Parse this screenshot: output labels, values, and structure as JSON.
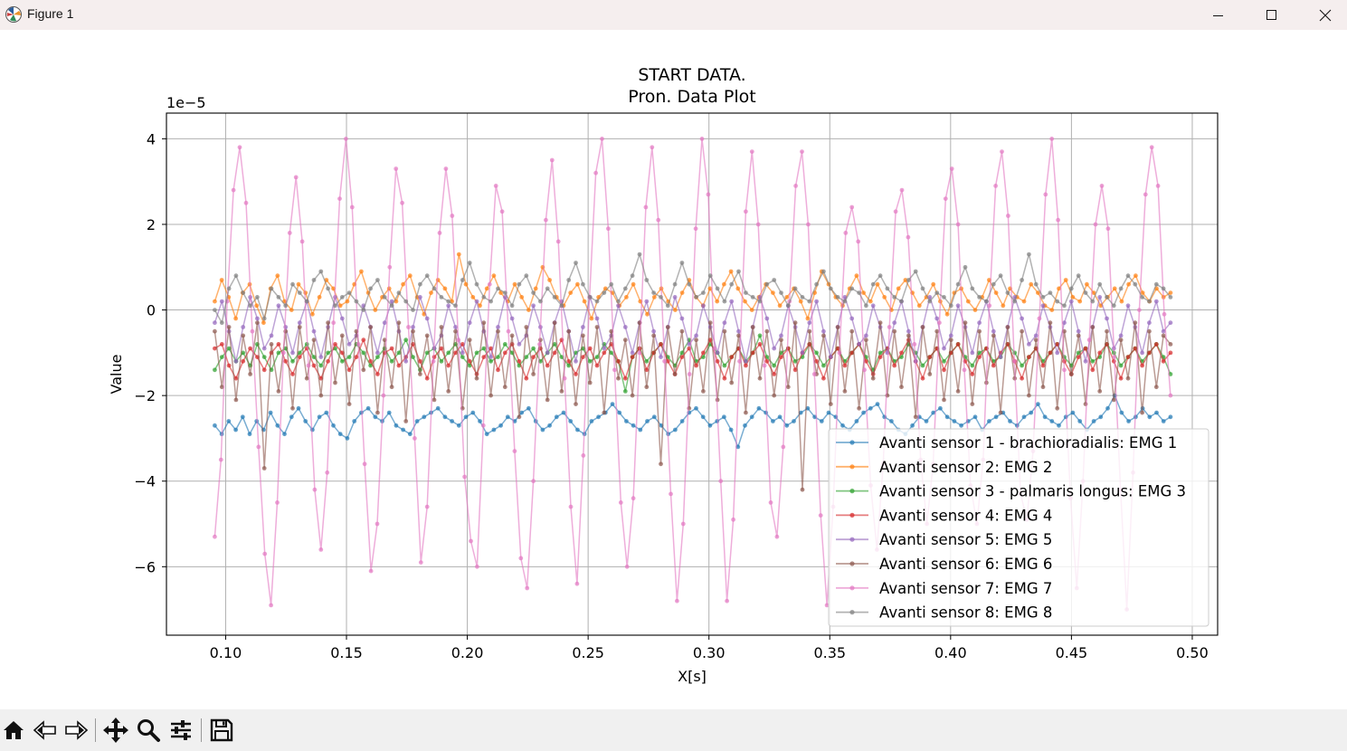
{
  "window": {
    "title": "Figure 1",
    "icons": [
      "matplotlib-logo-icon",
      "minimize-icon",
      "maximize-icon",
      "close-icon"
    ]
  },
  "toolbar": {
    "tools": [
      "home-icon",
      "back-arrow-icon",
      "forward-arrow-icon",
      "pan-icon",
      "zoom-icon",
      "configure-subplots-icon",
      "save-icon"
    ]
  },
  "chart_data": {
    "type": "line",
    "title": "START DATA.\nPron. Data Plot",
    "title_lines": [
      "START DATA.",
      "Pron. Data Plot"
    ],
    "xlabel": "X[s]",
    "ylabel": "Value",
    "y_offset_text": "1e−5",
    "xlim": [
      0.0755,
      0.5105
    ],
    "ylim": [
      -7.6,
      4.6
    ],
    "x_ticks": [
      0.1,
      0.15,
      0.2,
      0.25,
      0.3,
      0.35,
      0.4,
      0.45,
      0.5
    ],
    "x_tick_labels": [
      "0.10",
      "0.15",
      "0.20",
      "0.25",
      "0.30",
      "0.35",
      "0.40",
      "0.45",
      "0.50"
    ],
    "y_ticks": [
      4,
      2,
      0,
      -2,
      -4,
      -6
    ],
    "y_tick_labels": [
      "4",
      "2",
      "0",
      "−2",
      "−4",
      "−6"
    ],
    "grid": true,
    "legend_position": "lower-right",
    "x_start": 0.0955,
    "x_end": 0.491,
    "series": [
      {
        "name": "Avanti sensor 1 - brachioradialis: EMG 1",
        "color": "#1f77b4",
        "values": [
          -2.7,
          -2.9,
          -2.6,
          -2.8,
          -2.5,
          -2.9,
          -2.6,
          -2.8,
          -2.4,
          -2.7,
          -2.9,
          -2.5,
          -2.3,
          -2.6,
          -2.8,
          -2.5,
          -2.4,
          -2.7,
          -2.9,
          -3.0,
          -2.6,
          -2.4,
          -2.3,
          -2.5,
          -2.6,
          -2.4,
          -2.7,
          -2.8,
          -2.9,
          -2.6,
          -2.5,
          -2.4,
          -2.3,
          -2.5,
          -2.6,
          -2.7,
          -2.5,
          -2.4,
          -2.6,
          -2.9,
          -2.8,
          -2.7,
          -2.5,
          -2.6,
          -2.4,
          -2.3,
          -2.6,
          -2.8,
          -2.7,
          -2.5,
          -2.4,
          -2.6,
          -2.8,
          -2.9,
          -2.6,
          -2.5,
          -2.4,
          -2.2,
          -2.4,
          -2.6,
          -2.7,
          -2.8,
          -2.6,
          -2.5,
          -2.7,
          -2.9,
          -2.8,
          -2.6,
          -2.4,
          -2.3,
          -2.5,
          -2.7,
          -2.6,
          -2.5,
          -2.8,
          -3.2,
          -2.7,
          -2.5,
          -2.3,
          -2.4,
          -2.6,
          -2.5,
          -2.7,
          -2.6,
          -2.4,
          -2.3,
          -2.5,
          -2.6,
          -2.4,
          -2.5,
          -2.7,
          -2.8,
          -2.6,
          -2.4,
          -2.3,
          -2.2,
          -2.5,
          -2.6,
          -2.8,
          -2.9,
          -2.7,
          -2.5,
          -2.6,
          -2.4,
          -2.3,
          -2.5,
          -2.6,
          -2.7,
          -2.6,
          -2.5,
          -2.8,
          -2.6,
          -2.5,
          -2.4,
          -2.6,
          -2.7,
          -2.5,
          -2.4,
          -2.2,
          -2.5,
          -2.6,
          -2.7,
          -2.5,
          -2.4,
          -2.6,
          -2.8,
          -2.6,
          -2.5,
          -2.3,
          -2.0,
          -2.4,
          -2.6,
          -2.5,
          -2.3,
          -2.5,
          -2.4,
          -2.6,
          -2.5
        ]
      },
      {
        "name": "Avanti sensor 2: EMG 2",
        "color": "#ff7f0e",
        "values": [
          0.2,
          0.7,
          0.3,
          -0.2,
          0.4,
          0.6,
          0.1,
          -0.3,
          0.5,
          0.8,
          0.2,
          0.0,
          0.6,
          0.4,
          -0.1,
          0.3,
          0.7,
          0.5,
          0.1,
          0.2,
          0.6,
          0.9,
          0.4,
          0.0,
          0.3,
          0.5,
          0.2,
          0.6,
          0.8,
          0.3,
          -0.1,
          0.4,
          0.7,
          0.5,
          0.2,
          1.3,
          0.6,
          0.3,
          0.1,
          0.5,
          0.8,
          0.4,
          0.2,
          0.6,
          0.3,
          0.0,
          0.5,
          1.0,
          0.7,
          0.3,
          0.1,
          0.4,
          0.6,
          0.2,
          -0.2,
          0.3,
          0.5,
          0.4,
          0.1,
          0.3,
          0.6,
          0.2,
          -0.1,
          0.3,
          0.5,
          0.2,
          0.0,
          0.4,
          0.7,
          0.3,
          0.1,
          0.5,
          0.2,
          0.6,
          0.9,
          0.5,
          0.2,
          0.0,
          0.3,
          0.6,
          0.4,
          0.1,
          0.3,
          0.5,
          0.2,
          -0.2,
          0.4,
          0.9,
          0.6,
          0.3,
          0.1,
          0.5,
          0.8,
          0.4,
          0.2,
          0.6,
          0.3,
          0.0,
          0.5,
          0.7,
          0.4,
          0.1,
          0.3,
          0.6,
          0.2,
          -0.1,
          0.4,
          0.5,
          0.2,
          0.0,
          0.3,
          0.7,
          0.4,
          0.1,
          0.5,
          0.3,
          0.2,
          0.6,
          0.4,
          0.1,
          0.0,
          0.5,
          0.7,
          0.3,
          0.2,
          0.6,
          0.4,
          0.1,
          0.3,
          0.5,
          0.2,
          0.6,
          0.8,
          0.4,
          0.2,
          0.5,
          0.3,
          0.4
        ]
      },
      {
        "name": "Avanti sensor 3 - palmaris longus: EMG 3",
        "color": "#2ca02c",
        "values": [
          -1.4,
          -1.1,
          -0.9,
          -1.2,
          -1.0,
          -1.3,
          -0.8,
          -1.1,
          -1.4,
          -1.0,
          -0.9,
          -1.2,
          -1.0,
          -0.8,
          -1.1,
          -1.3,
          -1.0,
          -0.9,
          -1.2,
          -1.1,
          -0.8,
          -1.0,
          -1.3,
          -1.1,
          -0.9,
          -1.2,
          -1.0,
          -0.7,
          -1.1,
          -1.4,
          -1.0,
          -0.9,
          -1.2,
          -1.0,
          -0.8,
          -1.1,
          -1.3,
          -1.0,
          -0.9,
          -1.2,
          -1.1,
          -0.8,
          -1.0,
          -1.3,
          -1.1,
          -0.9,
          -1.2,
          -1.0,
          -0.8,
          -1.1,
          -1.3,
          -1.0,
          -0.9,
          -1.2,
          -1.1,
          -0.8,
          -1.0,
          -1.2,
          -1.9,
          -1.1,
          -0.9,
          -1.2,
          -1.0,
          -0.8,
          -1.1,
          -1.3,
          -1.0,
          -0.7,
          -1.2,
          -1.1,
          -0.8,
          -1.0,
          -1.3,
          -1.1,
          -0.9,
          -1.2,
          -1.0,
          -0.6,
          -1.1,
          -1.3,
          -1.0,
          -0.9,
          -1.2,
          -1.1,
          -0.8,
          -1.0,
          -1.3,
          -1.1,
          -0.9,
          -1.2,
          -1.0,
          -0.8,
          -1.1,
          -1.4,
          -1.0,
          -0.9,
          -1.2,
          -1.1,
          -0.8,
          -1.0,
          -1.3,
          -1.1,
          -0.9,
          -1.2,
          -1.0,
          -0.8,
          -1.1,
          -1.3,
          -1.0,
          -0.9,
          -1.2,
          -1.1,
          -0.8,
          -1.0,
          -1.3,
          -1.1,
          -0.9,
          -1.2,
          -1.0,
          -0.8,
          -1.1,
          -1.3,
          -1.0,
          -0.9,
          -1.2,
          -1.1,
          -0.8,
          -1.0,
          -1.3,
          -1.1,
          -0.9,
          -1.2,
          -1.0,
          -0.8,
          -1.1,
          -1.5
        ]
      },
      {
        "name": "Avanti sensor 4: EMG 4",
        "color": "#d62728",
        "values": [
          -0.9,
          -0.8,
          -1.3,
          -1.6,
          -1.2,
          -0.9,
          -1.1,
          -1.4,
          -1.0,
          -0.8,
          -1.2,
          -1.5,
          -1.1,
          -0.9,
          -1.3,
          -1.6,
          -1.2,
          -0.8,
          -1.0,
          -1.4,
          -1.1,
          -0.7,
          -1.2,
          -1.5,
          -1.0,
          -0.9,
          -1.3,
          -1.1,
          -0.8,
          -1.2,
          -1.6,
          -1.1,
          -0.9,
          -1.3,
          -1.0,
          -0.8,
          -1.2,
          -1.5,
          -1.1,
          -0.9,
          -1.4,
          -1.0,
          -0.8,
          -1.2,
          -1.6,
          -1.1,
          -0.9,
          -1.3,
          -1.0,
          -0.7,
          -1.2,
          -1.5,
          -1.1,
          -0.9,
          -1.3,
          -1.0,
          -0.8,
          -1.2,
          -1.6,
          -1.1,
          -0.9,
          -1.4,
          -1.0,
          -0.8,
          -1.2,
          -1.5,
          -1.1,
          -0.9,
          -1.3,
          -1.0,
          -0.7,
          -1.2,
          -1.6,
          -1.1,
          -0.9,
          -1.3,
          -1.0,
          -0.8,
          -1.2,
          -1.5,
          -1.1,
          -0.9,
          -1.4,
          -1.0,
          -0.8,
          -1.2,
          -1.6,
          -1.1,
          -0.9,
          -1.3,
          -1.0,
          -0.8,
          -1.2,
          -1.5,
          -1.1,
          -0.9,
          -1.3,
          -1.0,
          -0.7,
          -1.2,
          -1.6,
          -1.1,
          -0.9,
          -1.4,
          -1.0,
          -0.8,
          -1.2,
          -1.5,
          -1.1,
          -0.9,
          -1.3,
          -1.0,
          -0.8,
          -1.2,
          -1.6,
          -1.1,
          -0.9,
          -1.3,
          -1.0,
          -0.8,
          -1.2,
          -1.5,
          -1.1,
          -0.9,
          -1.4,
          -1.0,
          -0.8,
          -1.2,
          -1.6,
          -1.1,
          -0.9,
          -1.3,
          -1.0,
          -0.8,
          -1.2,
          -1.0
        ]
      },
      {
        "name": "Avanti sensor 5: EMG 5",
        "color": "#9467bd",
        "values": [
          -0.3,
          0.2,
          -0.5,
          -1.2,
          -0.4,
          0.3,
          -0.2,
          -0.9,
          -0.6,
          0.1,
          -0.4,
          -1.0,
          -0.3,
          0.2,
          -0.5,
          -1.1,
          -0.4,
          0.3,
          -0.2,
          -0.8,
          -0.6,
          0.1,
          -0.4,
          -1.0,
          -0.3,
          0.2,
          -0.5,
          -1.2,
          -0.4,
          0.3,
          -0.2,
          -0.9,
          -0.6,
          0.1,
          -0.4,
          -1.0,
          -0.3,
          0.2,
          -0.5,
          -1.1,
          -0.4,
          0.3,
          -0.2,
          -0.8,
          -0.6,
          0.1,
          -0.4,
          -1.0,
          -0.3,
          0.2,
          -0.5,
          -1.2,
          -0.4,
          0.3,
          -0.2,
          -0.9,
          -0.6,
          0.1,
          -0.4,
          -1.0,
          -0.3,
          0.2,
          -0.5,
          -1.1,
          -0.4,
          0.3,
          -0.2,
          -0.8,
          -0.6,
          0.1,
          -0.4,
          -1.0,
          -0.3,
          0.2,
          -0.5,
          -1.2,
          -0.4,
          0.3,
          -0.2,
          -0.9,
          -0.6,
          0.1,
          -0.4,
          -1.0,
          -0.3,
          0.2,
          -0.5,
          -1.1,
          -0.4,
          0.3,
          -0.2,
          -0.8,
          -0.6,
          0.1,
          -0.4,
          -1.0,
          -0.3,
          0.2,
          -0.5,
          -1.2,
          -0.4,
          0.3,
          -0.2,
          -0.9,
          -0.6,
          0.1,
          -0.4,
          -1.0,
          -0.3,
          0.2,
          -0.5,
          -1.1,
          -0.4,
          0.3,
          -0.2,
          -0.8,
          -0.6,
          0.1,
          -0.4,
          -1.0,
          -0.3,
          0.2,
          -0.5,
          -1.2,
          -0.4,
          0.3,
          -0.2,
          -0.9,
          -0.6,
          0.1,
          -0.4,
          -1.0,
          -0.3,
          0.2,
          -0.5,
          -0.3
        ]
      },
      {
        "name": "Avanti sensor 6: EMG 6",
        "color": "#8c564b",
        "values": [
          -0.5,
          -1.8,
          -0.4,
          -2.1,
          -0.6,
          -1.5,
          -0.3,
          -3.7,
          -0.8,
          -1.9,
          -0.5,
          -2.3,
          -0.4,
          -1.6,
          -0.7,
          -2.0,
          -0.3,
          -1.7,
          -0.6,
          -2.2,
          -0.5,
          -1.4,
          -0.4,
          -2.4,
          -0.7,
          -1.8,
          -0.3,
          -2.6,
          -0.5,
          -1.5,
          -0.6,
          -2.1,
          -0.4,
          -1.9,
          -0.5,
          -2.3,
          -0.7,
          -1.6,
          -0.3,
          -2.0,
          -0.5,
          -1.8,
          -0.6,
          -2.5,
          -0.4,
          -1.5,
          -0.7,
          -2.1,
          -0.3,
          -1.9,
          -0.5,
          -2.2,
          -0.6,
          -1.7,
          -0.4,
          -2.4,
          -0.5,
          -1.6,
          -0.7,
          -2.0,
          -0.3,
          -1.8,
          -0.6,
          -3.6,
          -0.4,
          -1.5,
          -0.5,
          -2.3,
          -0.7,
          -1.9,
          -0.3,
          -2.1,
          -0.5,
          -1.7,
          -0.6,
          -2.4,
          -0.4,
          -1.6,
          -0.5,
          -2.0,
          -0.7,
          -1.8,
          -0.3,
          -4.2,
          -0.5,
          -1.5,
          -0.6,
          -2.2,
          -0.4,
          -1.9,
          -0.5,
          -2.3,
          -0.7,
          -1.6,
          -0.3,
          -2.0,
          -0.5,
          -1.8,
          -0.6,
          -2.5,
          -0.4,
          -1.5,
          -0.5,
          -2.1,
          -0.7,
          -1.9,
          -0.3,
          -2.2,
          -0.5,
          -1.7,
          -0.6,
          -2.4,
          -0.4,
          -1.6,
          -0.5,
          -2.0,
          -0.7,
          -1.8,
          -0.3,
          -2.3,
          -0.5,
          -1.5,
          -0.6,
          -2.2,
          -0.4,
          -1.9,
          -0.5,
          -2.1,
          -0.7,
          -1.6,
          -0.3,
          -2.4,
          -0.5,
          -1.8,
          -0.6,
          -0.8
        ]
      },
      {
        "name": "Avanti sensor 7: EMG 7",
        "color": "#e377c2",
        "values": [
          -5.3,
          -3.5,
          0.2,
          2.8,
          3.8,
          2.5,
          -0.5,
          -3.2,
          -5.7,
          -6.9,
          -4.5,
          -1.0,
          1.8,
          3.1,
          1.6,
          -1.3,
          -4.2,
          -5.6,
          -3.8,
          -0.3,
          2.6,
          4.0,
          2.4,
          -0.8,
          -3.6,
          -6.1,
          -5.0,
          -2.0,
          1.0,
          3.3,
          2.5,
          -0.4,
          -3.0,
          -5.9,
          -4.6,
          -1.2,
          1.8,
          3.3,
          2.2,
          -0.7,
          -3.9,
          -5.4,
          -6.0,
          -2.7,
          0.6,
          2.9,
          2.3,
          -0.5,
          -3.3,
          -5.8,
          -6.5,
          -4.0,
          -0.8,
          2.1,
          3.5,
          1.6,
          -1.6,
          -4.6,
          -6.4,
          -3.4,
          0.3,
          3.2,
          4.0,
          1.9,
          -1.4,
          -4.5,
          -6.0,
          -4.4,
          -1.0,
          2.4,
          3.8,
          2.1,
          -1.2,
          -4.3,
          -6.8,
          -5.0,
          -1.5,
          1.9,
          4.0,
          2.7,
          -0.9,
          -4.0,
          -6.8,
          -4.9,
          -1.2,
          2.3,
          3.7,
          2.0,
          -1.3,
          -4.5,
          -5.3,
          -3.2,
          0.2,
          2.9,
          3.7,
          2.0,
          -1.5,
          -4.8,
          -6.9,
          -4.6,
          -1.0,
          1.8,
          2.4,
          1.6,
          -1.4,
          -4.1,
          -5.6,
          -3.6,
          -0.4,
          2.3,
          2.8,
          1.7,
          -0.8,
          -3.5,
          -5.0,
          -3.6,
          -0.3,
          2.6,
          3.3,
          2.0,
          -1.4,
          -4.1,
          -5.0,
          -3.5,
          0.1,
          2.9,
          3.7,
          2.2,
          -1.2,
          -4.3,
          -4.9,
          -3.3,
          -0.2,
          2.7,
          4.0,
          2.1,
          -1.4,
          -4.4,
          -6.5,
          -4.0,
          -0.7,
          2.0,
          2.9,
          1.9,
          -1.1,
          -4.2,
          -7.0,
          -3.8,
          0.0,
          2.7,
          3.8,
          2.9,
          -0.1,
          -2.0
        ]
      },
      {
        "name": "Avanti sensor 8: EMG 8",
        "color": "#7f7f7f",
        "values": [
          0.0,
          -0.3,
          0.5,
          0.8,
          0.4,
          0.1,
          0.3,
          -0.2,
          0.5,
          0.3,
          0.1,
          0.6,
          0.4,
          0.2,
          0.7,
          0.9,
          0.5,
          0.1,
          0.3,
          0.4,
          0.2,
          0.0,
          0.5,
          0.7,
          0.3,
          0.1,
          0.4,
          0.2,
          0.0,
          0.6,
          0.8,
          0.5,
          0.3,
          0.2,
          0.1,
          0.7,
          1.1,
          0.6,
          0.3,
          0.2,
          0.5,
          0.4,
          0.1,
          0.6,
          0.8,
          0.4,
          0.2,
          0.5,
          0.3,
          0.1,
          0.7,
          1.1,
          0.6,
          0.3,
          0.2,
          0.4,
          0.6,
          0.2,
          0.5,
          0.8,
          1.3,
          0.7,
          0.4,
          0.3,
          0.1,
          0.6,
          1.1,
          0.6,
          0.3,
          0.4,
          0.8,
          0.5,
          0.2,
          0.6,
          0.9,
          0.4,
          0.3,
          0.2,
          0.6,
          0.7,
          0.4,
          0.1,
          0.5,
          0.3,
          0.2,
          0.6,
          0.9,
          0.5,
          0.3,
          0.2,
          0.5,
          0.4,
          0.1,
          0.6,
          0.8,
          0.5,
          0.3,
          0.2,
          0.7,
          0.9,
          0.5,
          0.2,
          0.4,
          0.3,
          0.1,
          0.6,
          1.0,
          0.5,
          0.3,
          0.2,
          0.6,
          0.8,
          0.4,
          0.2,
          0.7,
          1.3,
          0.6,
          0.3,
          0.4,
          0.2,
          0.1,
          0.5,
          0.8,
          0.4,
          0.2,
          0.6,
          0.3,
          0.1,
          0.5,
          0.8,
          0.6,
          0.3,
          0.2,
          0.6,
          0.5,
          0.3
        ]
      }
    ]
  }
}
